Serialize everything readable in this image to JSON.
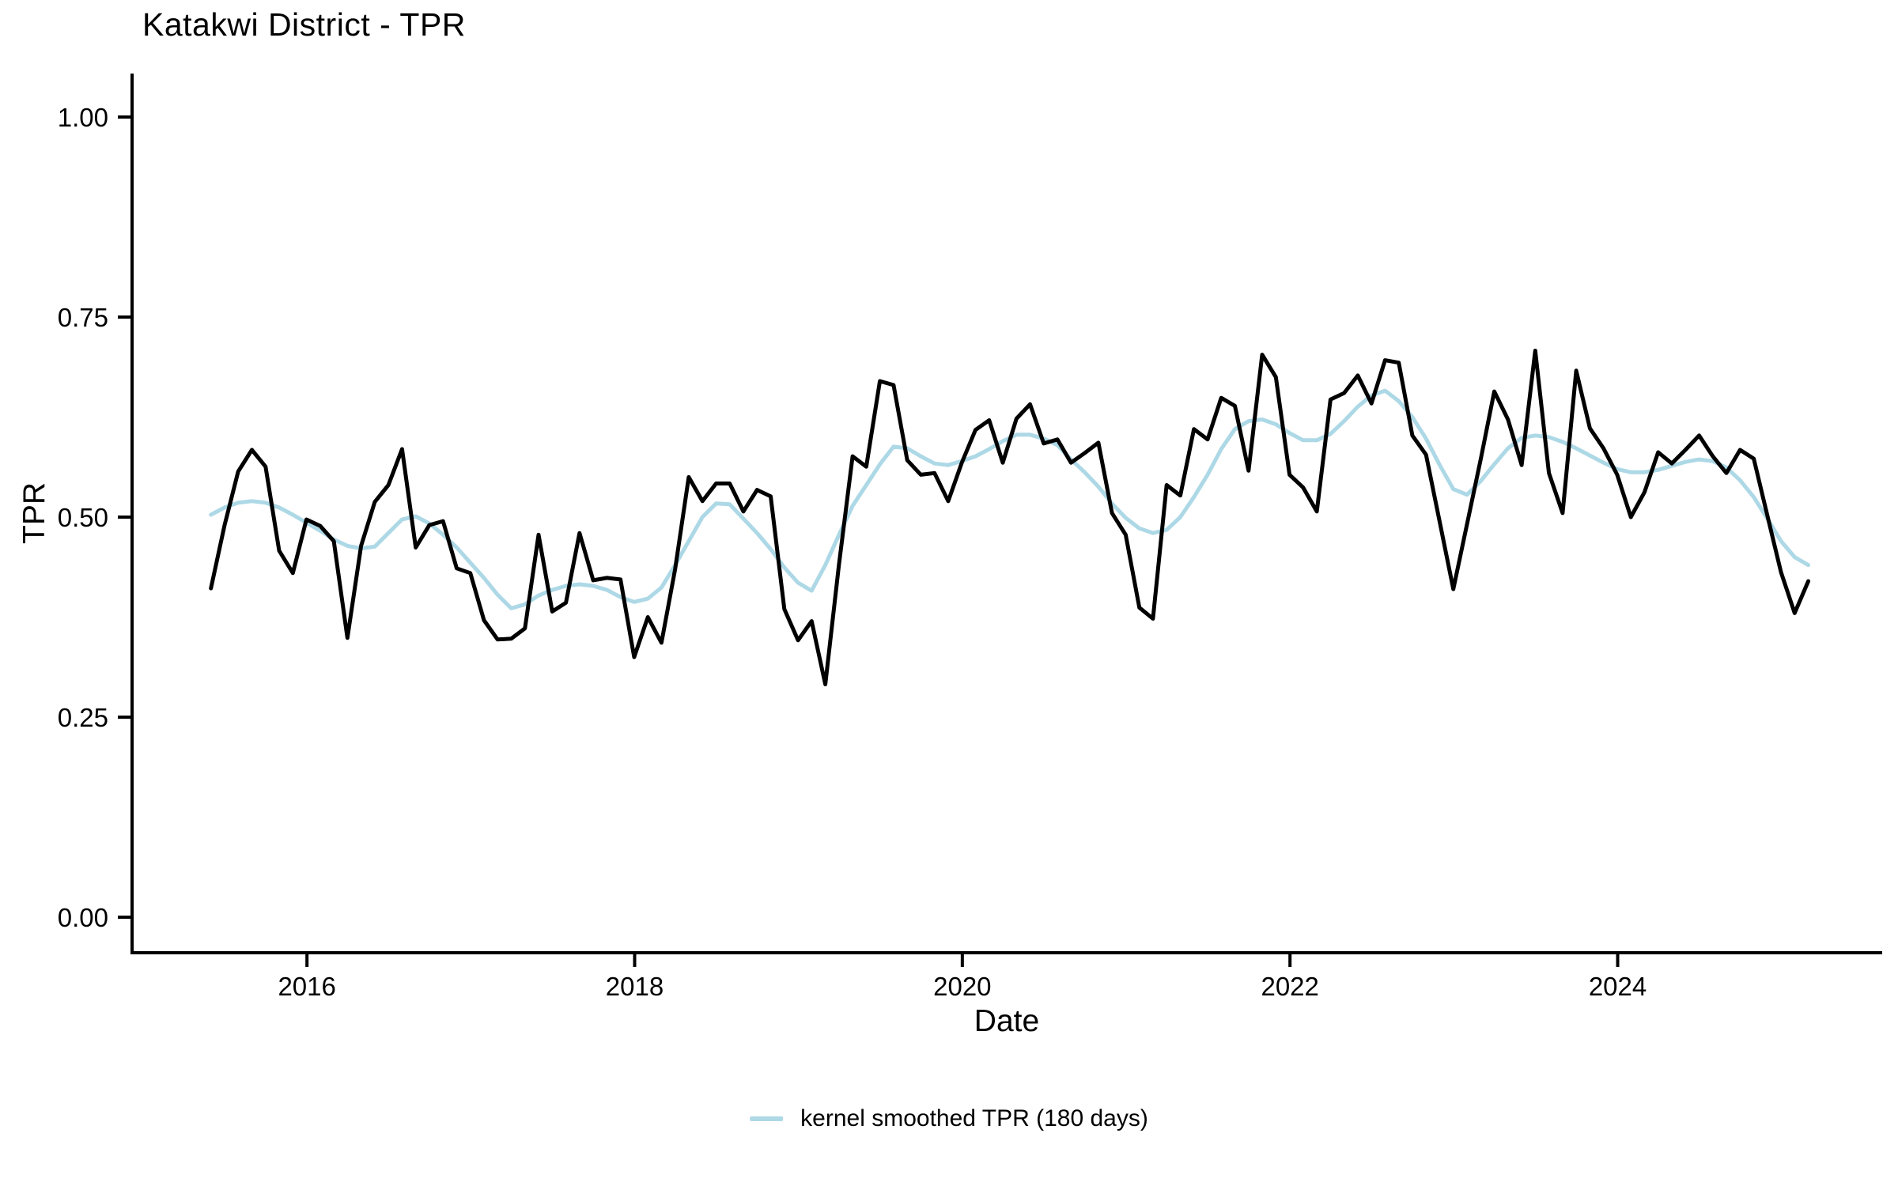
{
  "title": "Katakwi District - TPR",
  "axes": {
    "x_label": "Date",
    "y_label": "TPR",
    "y_ticks": [
      "0.00",
      "0.25",
      "0.50",
      "0.75",
      "1.00"
    ],
    "x_ticks": [
      "2016",
      "2018",
      "2020",
      "2022",
      "2024"
    ]
  },
  "legend": {
    "label": "kernel smoothed TPR (180 days)",
    "swatch_color": "#ADD8E6"
  },
  "colors": {
    "tpr_line": "#000000",
    "smoothed_line": "#ADD8E6",
    "axis": "#000000",
    "background": "#FFFFFF"
  },
  "chart_data": {
    "type": "line",
    "title": "Katakwi District - TPR",
    "xlabel": "Date",
    "ylabel": "TPR",
    "ylim": [
      0,
      1
    ],
    "x_tick_years": [
      2016,
      2018,
      2020,
      2022,
      2024
    ],
    "grid": false,
    "legend_position": "bottom",
    "dates": [
      "2015-05",
      "2015-06",
      "2015-07",
      "2015-08",
      "2015-09",
      "2015-10",
      "2015-11",
      "2015-12",
      "2016-01",
      "2016-02",
      "2016-03",
      "2016-04",
      "2016-05",
      "2016-06",
      "2016-07",
      "2016-08",
      "2016-09",
      "2016-10",
      "2016-11",
      "2016-12",
      "2017-01",
      "2017-02",
      "2017-03",
      "2017-04",
      "2017-05",
      "2017-06",
      "2017-07",
      "2017-08",
      "2017-09",
      "2017-10",
      "2017-11",
      "2017-12",
      "2018-01",
      "2018-02",
      "2018-03",
      "2018-04",
      "2018-05",
      "2018-06",
      "2018-07",
      "2018-08",
      "2018-09",
      "2018-10",
      "2018-11",
      "2018-12",
      "2019-01",
      "2019-02",
      "2019-03",
      "2019-04",
      "2019-05",
      "2019-06",
      "2019-07",
      "2019-08",
      "2019-09",
      "2019-10",
      "2019-11",
      "2019-12",
      "2020-01",
      "2020-02",
      "2020-03",
      "2020-04",
      "2020-05",
      "2020-06",
      "2020-07",
      "2020-08",
      "2020-09",
      "2020-10",
      "2020-11",
      "2020-12",
      "2021-01",
      "2021-02",
      "2021-03",
      "2021-04",
      "2021-05",
      "2021-06",
      "2021-07",
      "2021-08",
      "2021-09",
      "2021-10",
      "2021-11",
      "2021-12",
      "2022-01",
      "2022-02",
      "2022-03",
      "2022-04",
      "2022-05",
      "2022-06",
      "2022-07",
      "2022-08",
      "2022-09",
      "2022-10",
      "2022-11",
      "2022-12",
      "2023-01",
      "2023-02",
      "2023-03",
      "2023-04",
      "2023-05",
      "2023-06",
      "2023-07",
      "2023-08",
      "2023-09",
      "2023-10",
      "2023-11",
      "2023-12",
      "2024-01",
      "2024-02",
      "2024-03",
      "2024-04",
      "2024-05",
      "2024-06",
      "2024-07",
      "2024-08",
      "2024-09",
      "2024-10",
      "2024-11",
      "2024-12",
      "2025-01",
      "2025-02"
    ],
    "series": [
      {
        "name": "TPR",
        "color": "#000000",
        "values": [
          0.411,
          0.49,
          0.557,
          0.584,
          0.563,
          0.458,
          0.43,
          0.497,
          0.489,
          0.47,
          0.349,
          0.464,
          0.519,
          0.54,
          0.585,
          0.462,
          0.49,
          0.495,
          0.436,
          0.43,
          0.371,
          0.347,
          0.348,
          0.361,
          0.478,
          0.382,
          0.393,
          0.48,
          0.421,
          0.424,
          0.422,
          0.325,
          0.375,
          0.343,
          0.435,
          0.55,
          0.52,
          0.542,
          0.542,
          0.507,
          0.534,
          0.526,
          0.385,
          0.346,
          0.37,
          0.291,
          0.441,
          0.576,
          0.563,
          0.67,
          0.665,
          0.571,
          0.553,
          0.555,
          0.52,
          0.568,
          0.609,
          0.621,
          0.568,
          0.623,
          0.641,
          0.592,
          0.597,
          0.568,
          0.58,
          0.593,
          0.505,
          0.478,
          0.387,
          0.373,
          0.54,
          0.527,
          0.61,
          0.597,
          0.649,
          0.639,
          0.558,
          0.703,
          0.675,
          0.553,
          0.537,
          0.507,
          0.647,
          0.655,
          0.677,
          0.642,
          0.696,
          0.693,
          0.602,
          0.578,
          0.494,
          0.41,
          0.491,
          0.572,
          0.657,
          0.622,
          0.565,
          0.708,
          0.555,
          0.505,
          0.683,
          0.611,
          0.586,
          0.553,
          0.5,
          0.531,
          0.581,
          0.567,
          0.584,
          0.602,
          0.576,
          0.555,
          0.584,
          0.573,
          0.502,
          0.431,
          0.38,
          0.42
        ]
      },
      {
        "name": "kernel smoothed TPR (180 days)",
        "color": "#ADD8E6",
        "values": [
          0.503,
          0.512,
          0.518,
          0.52,
          0.518,
          0.512,
          0.503,
          0.493,
          0.483,
          0.472,
          0.464,
          0.461,
          0.463,
          0.48,
          0.497,
          0.501,
          0.492,
          0.478,
          0.462,
          0.443,
          0.424,
          0.403,
          0.386,
          0.391,
          0.402,
          0.409,
          0.414,
          0.416,
          0.414,
          0.409,
          0.4,
          0.394,
          0.398,
          0.412,
          0.44,
          0.47,
          0.5,
          0.517,
          0.516,
          0.498,
          0.48,
          0.46,
          0.437,
          0.418,
          0.408,
          0.44,
          0.478,
          0.514,
          0.54,
          0.566,
          0.588,
          0.586,
          0.576,
          0.567,
          0.565,
          0.57,
          0.576,
          0.585,
          0.595,
          0.603,
          0.603,
          0.598,
          0.59,
          0.572,
          0.556,
          0.538,
          0.517,
          0.499,
          0.486,
          0.48,
          0.484,
          0.5,
          0.525,
          0.553,
          0.585,
          0.61,
          0.62,
          0.622,
          0.616,
          0.605,
          0.596,
          0.596,
          0.604,
          0.62,
          0.638,
          0.652,
          0.658,
          0.645,
          0.625,
          0.598,
          0.565,
          0.535,
          0.528,
          0.545,
          0.566,
          0.586,
          0.599,
          0.602,
          0.6,
          0.594,
          0.586,
          0.577,
          0.568,
          0.56,
          0.556,
          0.556,
          0.559,
          0.564,
          0.569,
          0.572,
          0.57,
          0.562,
          0.546,
          0.525,
          0.498,
          0.47,
          0.45,
          0.44
        ]
      }
    ]
  }
}
